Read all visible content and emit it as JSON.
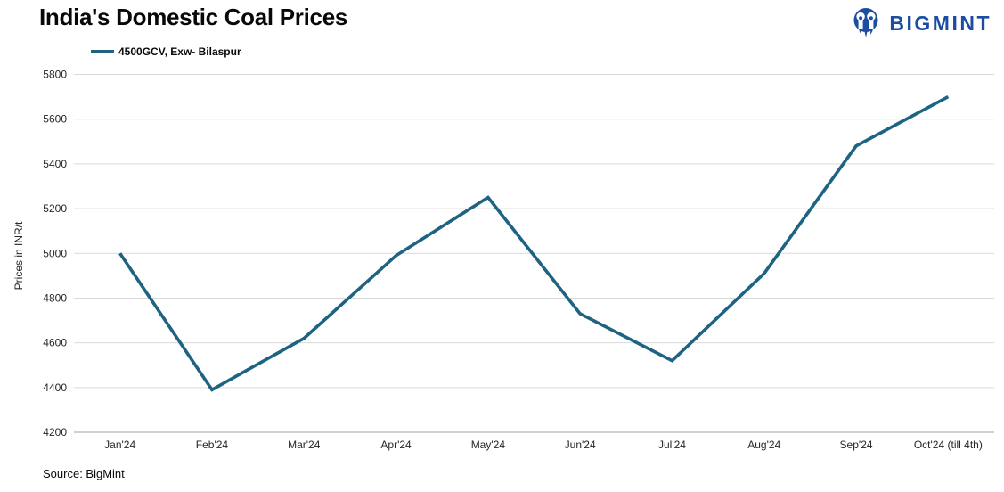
{
  "header": {
    "title": "India's Domestic Coal Prices"
  },
  "brand": {
    "name": "BIGMINT",
    "color": "#1C4DA1",
    "icon": "bigmint-rocket-owl-icon"
  },
  "legend": {
    "label": "4500GCV, Exw- Bilaspur"
  },
  "footer": {
    "source": "Source: BigMint"
  },
  "chart_data": {
    "type": "line",
    "title": "India's Domestic Coal Prices",
    "categories": [
      "Jan'24",
      "Feb'24",
      "Mar'24",
      "Apr'24",
      "May'24",
      "Jun'24",
      "Jul'24",
      "Aug'24",
      "Sep'24",
      "Oct'24 (till 4th)"
    ],
    "series": [
      {
        "name": "4500GCV, Exw- Bilaspur",
        "color": "#1E6482",
        "values": [
          5000,
          4390,
          4620,
          4990,
          5250,
          4730,
          4520,
          4910,
          5480,
          5700
        ]
      }
    ],
    "xlabel": "",
    "ylabel": "Prices in INR/t",
    "ylim": [
      4200,
      5800
    ],
    "yticks": [
      4200,
      4400,
      4600,
      4800,
      5000,
      5200,
      5400,
      5600,
      5800
    ],
    "grid": "horizontal",
    "legend_position": "top-left",
    "gridline_color": "#D9D9D9",
    "axisline_color": "#A6A6A6",
    "tick_label_color": "#262626"
  }
}
